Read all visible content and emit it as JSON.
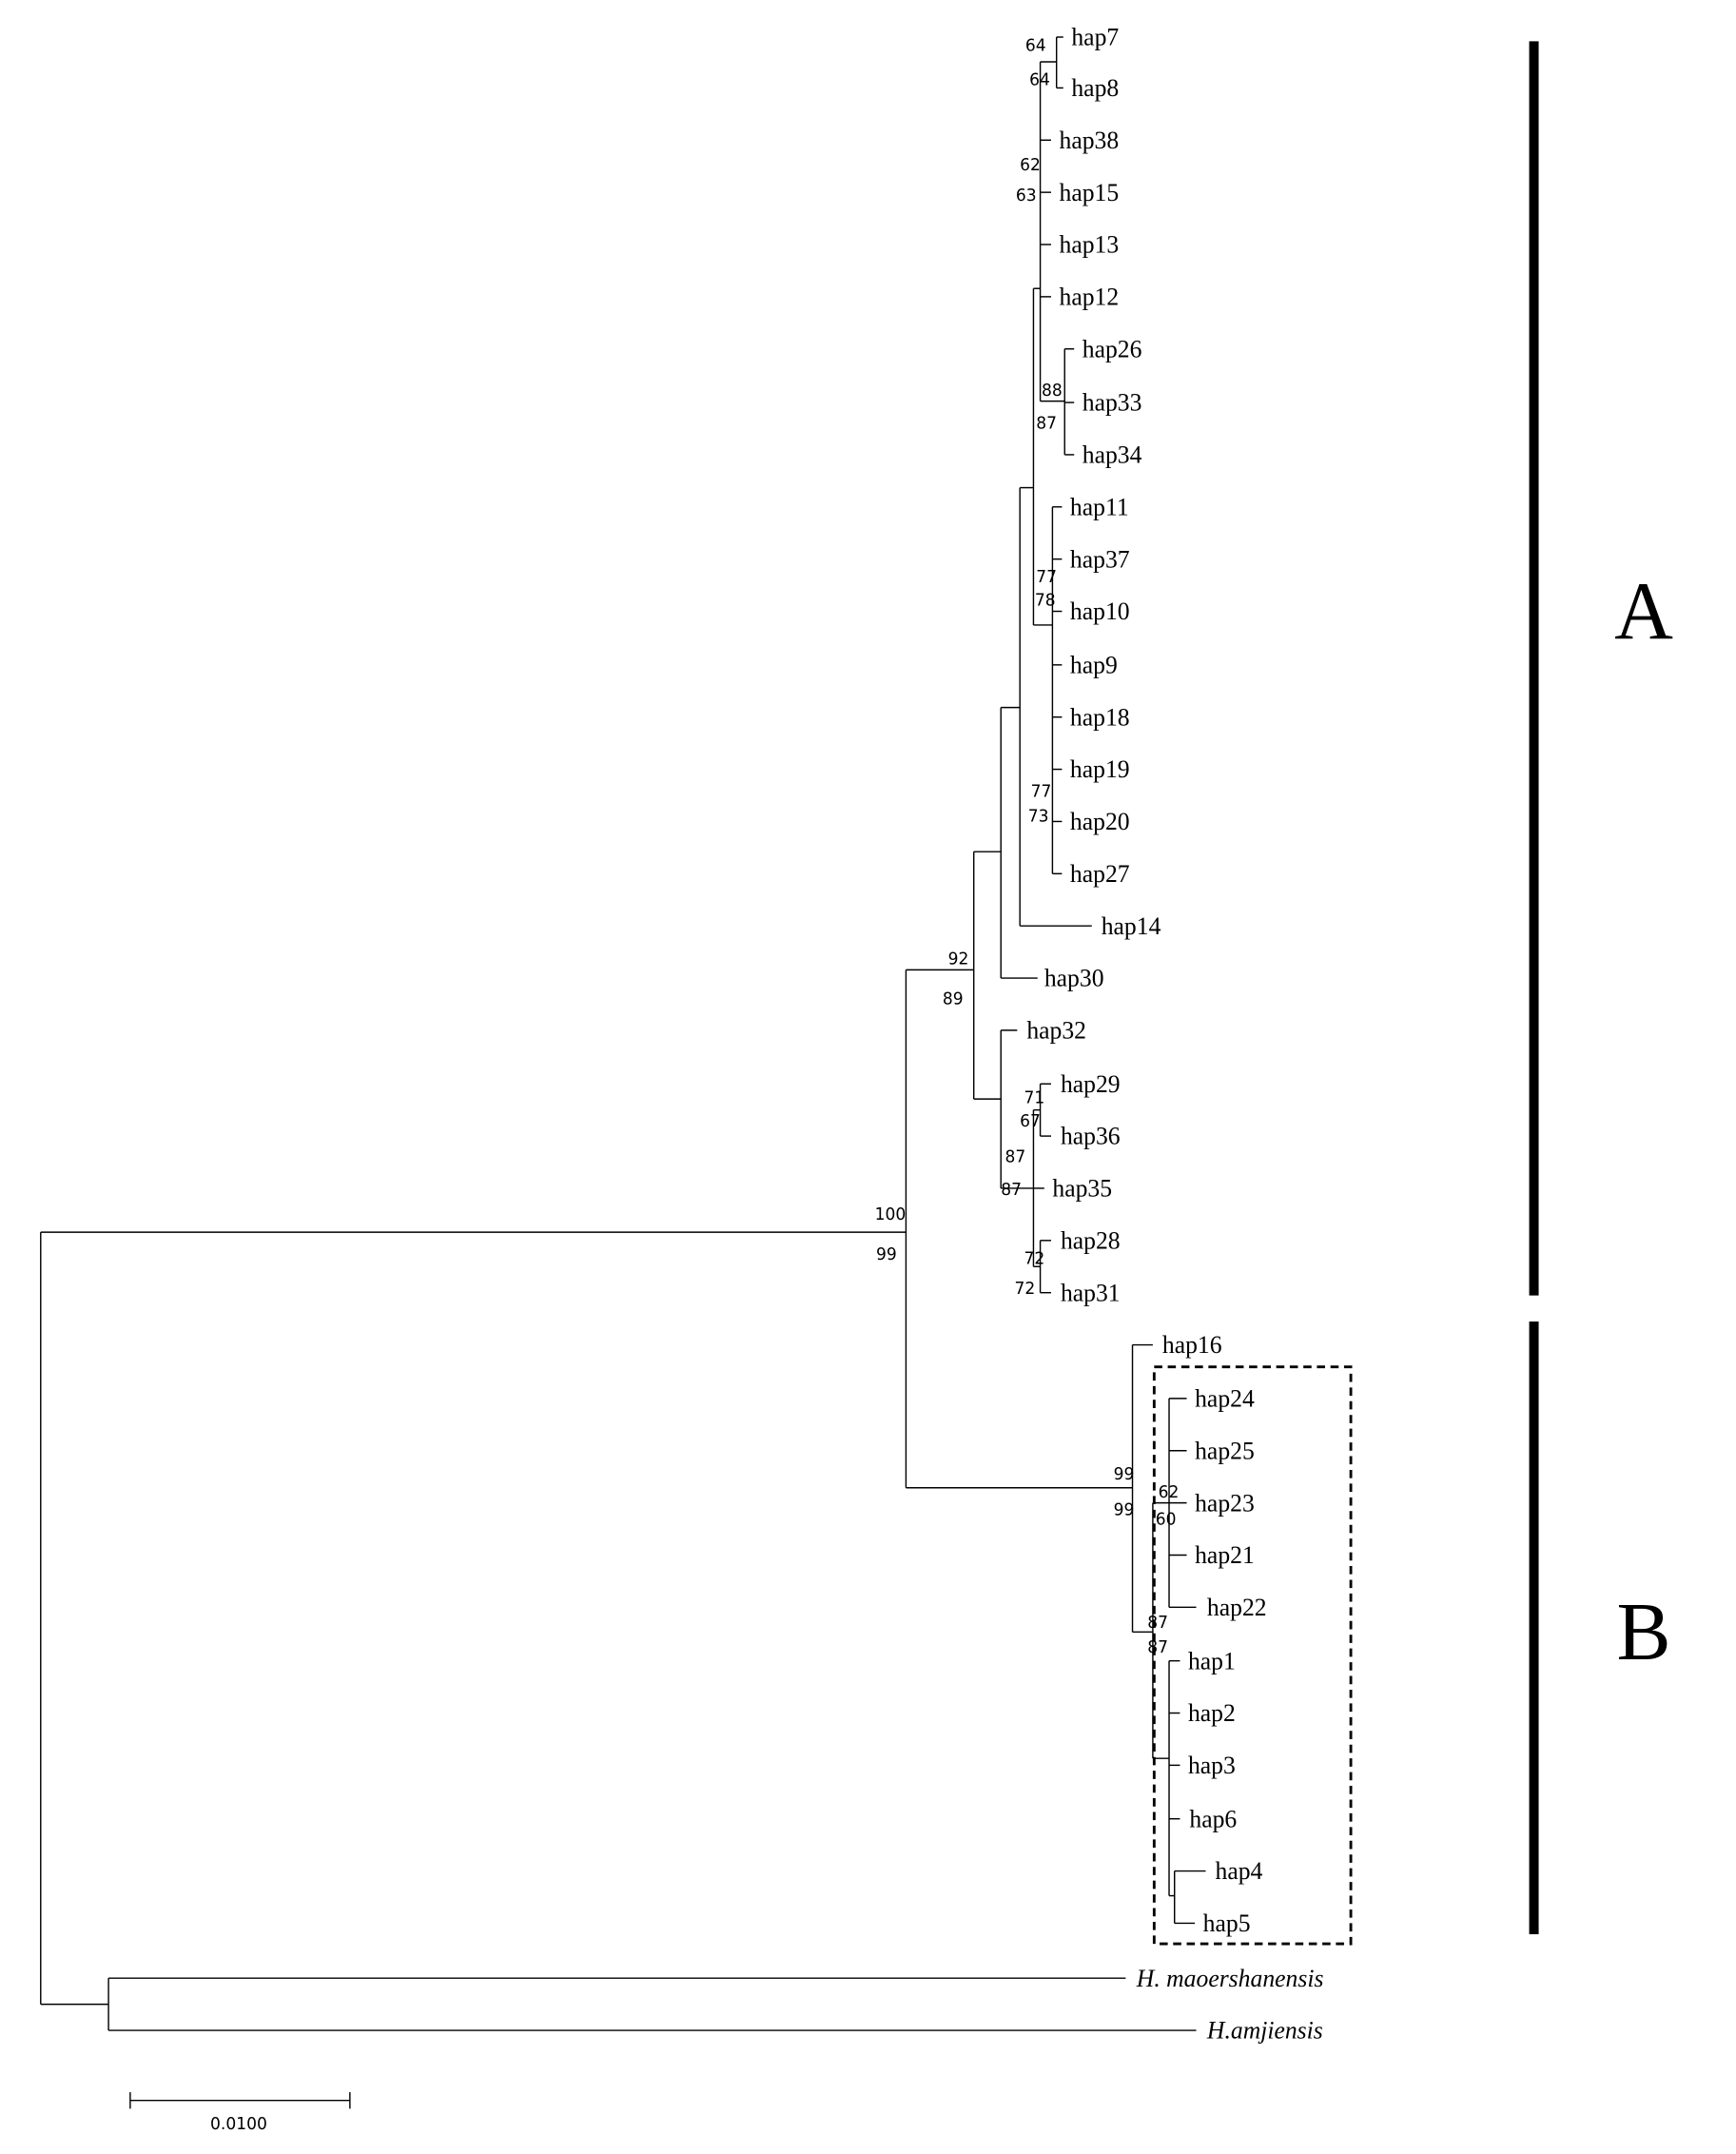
{
  "leaves": [
    "hap7",
    "hap8",
    "hap38",
    "hap15",
    "hap13",
    "hap12",
    "hap26",
    "hap33",
    "hap34",
    "hap11",
    "hap37",
    "hap10",
    "hap9",
    "hap18",
    "hap19",
    "hap20",
    "hap27",
    "hap14",
    "hap30",
    "hap32",
    "hap29",
    "hap36",
    "hap35",
    "hap28",
    "hap31",
    "hap16",
    "hap24",
    "hap25",
    "hap23",
    "hap21",
    "hap22",
    "hap1",
    "hap2",
    "hap3",
    "hap6",
    "hap4",
    "hap5",
    "H. maoershanensis",
    "H.amjiensis"
  ],
  "bootstrap": [
    "64",
    "64",
    "62",
    "63",
    "88",
    "87",
    "77",
    "78",
    "77",
    "73",
    "92",
    "89",
    "71",
    "67",
    "87",
    "87",
    "72",
    "72",
    "100",
    "99",
    "99",
    "99",
    "62",
    "60",
    "87",
    "87"
  ],
  "clades": [
    "A",
    "B"
  ],
  "scale_bar": "0.0100"
}
